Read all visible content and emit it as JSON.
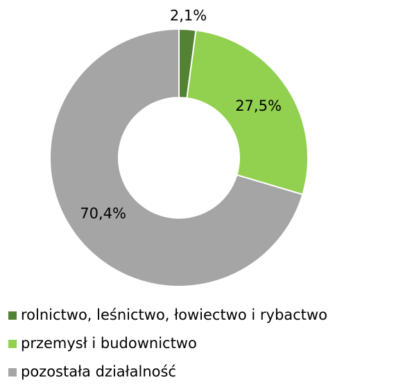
{
  "chart_data": {
    "type": "donut",
    "categories": [
      "rolnictwo, leśnictwo, łowiectwo i rybactwo",
      "przemysł i budownictwo",
      "pozostała działalność"
    ],
    "values": [
      2.1,
      27.5,
      70.4
    ],
    "value_labels": [
      "2,1%",
      "27,5%",
      "70,4%"
    ],
    "colors": [
      "#548235",
      "#92d050",
      "#a5a5a5"
    ],
    "legend": "bottom"
  }
}
